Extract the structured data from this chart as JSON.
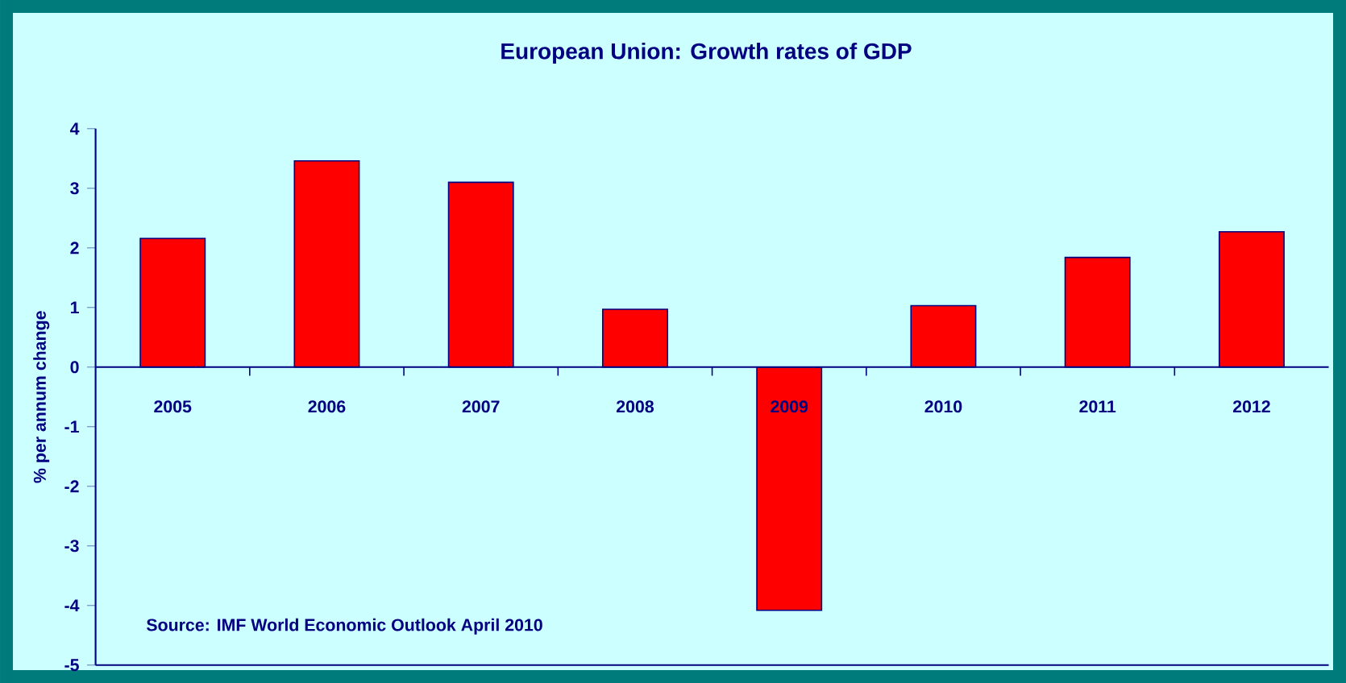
{
  "chart_data": {
    "type": "bar",
    "title": "European Union: Growth rates of GDP",
    "ylabel": "% per annum change",
    "categories": [
      "2005",
      "2006",
      "2007",
      "2008",
      "2009",
      "2010",
      "2011",
      "2012"
    ],
    "values": [
      2.16,
      3.46,
      3.1,
      0.97,
      -4.08,
      1.03,
      1.84,
      2.27
    ],
    "color": "#ff0000",
    "ylim": [
      -5,
      4
    ],
    "yticks": [
      -5,
      -4,
      -3,
      -2,
      -1,
      0,
      1,
      2,
      3,
      4
    ],
    "annotations": [
      "Source: IMF World Economic Outlook April 2010"
    ]
  }
}
